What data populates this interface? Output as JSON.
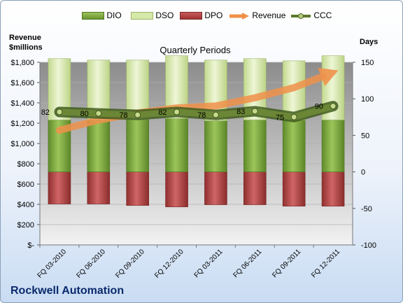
{
  "chart_data": {
    "type": "bar",
    "title": "Quarterly Periods",
    "company": "Rockwell Automation",
    "left_axis_title_line1": "Revenue",
    "left_axis_title_line2": "$millions",
    "right_axis_title": "Days",
    "categories": [
      "FQ 03-2010",
      "FQ 06-2010",
      "FQ 09-2010",
      "FQ 12-2010",
      "FQ 03-2011",
      "FQ 06-2011",
      "FQ 09-2011",
      "FQ 12-2011"
    ],
    "left_ylim": [
      0,
      1800
    ],
    "left_ticks": [
      "$-",
      "$200",
      "$400",
      "$600",
      "$800",
      "$1,000",
      "$1,200",
      "$1,400",
      "$1,600",
      "$1,800"
    ],
    "right_ylim": [
      -100,
      150
    ],
    "right_ticks": [
      "-100",
      "-50",
      "0",
      "50",
      "100",
      "150"
    ],
    "grid": true,
    "legend_position": "top",
    "legend": [
      {
        "label": "DIO",
        "kind": "bar",
        "color": "#77a33a"
      },
      {
        "label": "DSO",
        "kind": "bar",
        "color": "#d6e8a8"
      },
      {
        "label": "DPO",
        "kind": "bar",
        "color": "#b84747"
      },
      {
        "label": "Revenue",
        "kind": "arrow",
        "color": "#f0914a"
      },
      {
        "label": "CCC",
        "kind": "line-marker",
        "color": "#5e7a2e"
      }
    ],
    "series": [
      {
        "name": "DIO",
        "axis": "right",
        "values": [
          71,
          71,
          72,
          73,
          70,
          71,
          71,
          71
        ]
      },
      {
        "name": "DSO",
        "axis": "right",
        "values": [
          84,
          82,
          81,
          86,
          83,
          84,
          81,
          88
        ]
      },
      {
        "name": "DPO",
        "axis": "right",
        "values": [
          -44,
          -44,
          -46,
          -48,
          -45,
          -45,
          -47,
          -47
        ]
      },
      {
        "name": "CCC",
        "axis": "right",
        "values": [
          82,
          80,
          78,
          82,
          78,
          83,
          75,
          90
        ]
      },
      {
        "name": "Revenue",
        "axis": "left",
        "values": [
          1130,
          1230,
          1300,
          1350,
          1370,
          1450,
          1550,
          1700
        ]
      }
    ],
    "ccc_labels": [
      "82",
      "80",
      "78",
      "82",
      "78",
      "83",
      "75",
      "90"
    ]
  }
}
